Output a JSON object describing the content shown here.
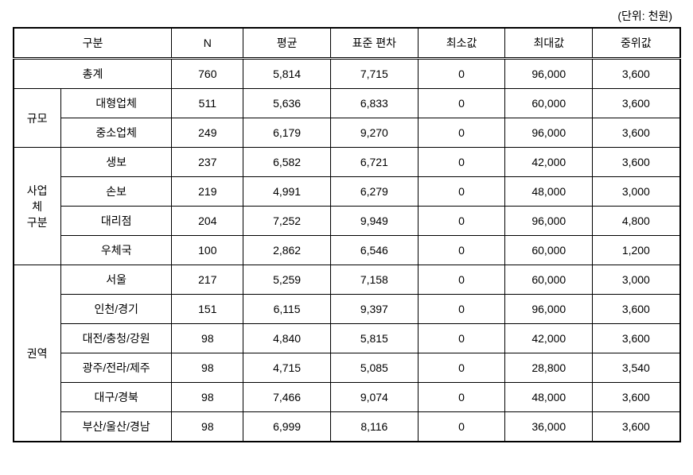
{
  "unit_label": "(단위: 천원)",
  "headers": {
    "category": "구분",
    "n": "N",
    "mean": "평균",
    "stddev": "표준 편차",
    "min": "최소값",
    "max": "최대값",
    "median": "중위값"
  },
  "total": {
    "label": "총계",
    "n": "760",
    "mean": "5,814",
    "stddev": "7,715",
    "min": "0",
    "max": "96,000",
    "median": "3,600"
  },
  "groups": [
    {
      "group_label": "규모",
      "rows": [
        {
          "label": "대형업체",
          "n": "511",
          "mean": "5,636",
          "stddev": "6,833",
          "min": "0",
          "max": "60,000",
          "median": "3,600"
        },
        {
          "label": "중소업체",
          "n": "249",
          "mean": "6,179",
          "stddev": "9,270",
          "min": "0",
          "max": "96,000",
          "median": "3,600"
        }
      ]
    },
    {
      "group_label": "사업\n체\n구분",
      "rows": [
        {
          "label": "생보",
          "n": "237",
          "mean": "6,582",
          "stddev": "6,721",
          "min": "0",
          "max": "42,000",
          "median": "3,600"
        },
        {
          "label": "손보",
          "n": "219",
          "mean": "4,991",
          "stddev": "6,279",
          "min": "0",
          "max": "48,000",
          "median": "3,000"
        },
        {
          "label": "대리점",
          "n": "204",
          "mean": "7,252",
          "stddev": "9,949",
          "min": "0",
          "max": "96,000",
          "median": "4,800"
        },
        {
          "label": "우체국",
          "n": "100",
          "mean": "2,862",
          "stddev": "6,546",
          "min": "0",
          "max": "60,000",
          "median": "1,200"
        }
      ]
    },
    {
      "group_label": "권역",
      "rows": [
        {
          "label": "서울",
          "n": "217",
          "mean": "5,259",
          "stddev": "7,158",
          "min": "0",
          "max": "60,000",
          "median": "3,000"
        },
        {
          "label": "인천/경기",
          "n": "151",
          "mean": "6,115",
          "stddev": "9,397",
          "min": "0",
          "max": "96,000",
          "median": "3,600"
        },
        {
          "label": "대전/충청/강원",
          "n": "98",
          "mean": "4,840",
          "stddev": "5,815",
          "min": "0",
          "max": "42,000",
          "median": "3,600"
        },
        {
          "label": "광주/전라/제주",
          "n": "98",
          "mean": "4,715",
          "stddev": "5,085",
          "min": "0",
          "max": "28,800",
          "median": "3,540"
        },
        {
          "label": "대구/경북",
          "n": "98",
          "mean": "7,466",
          "stddev": "9,074",
          "min": "0",
          "max": "48,000",
          "median": "3,600"
        },
        {
          "label": "부산/울산/경남",
          "n": "98",
          "mean": "6,999",
          "stddev": "8,116",
          "min": "0",
          "max": "36,000",
          "median": "3,600"
        }
      ]
    }
  ]
}
